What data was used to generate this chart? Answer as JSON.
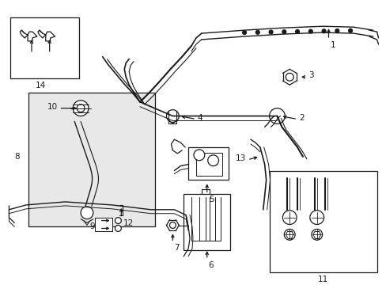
{
  "background_color": "#ffffff",
  "line_color": "#1a1a1a",
  "box_fill": "#e8e8e8",
  "figsize": [
    4.89,
    3.6
  ],
  "dpi": 100
}
